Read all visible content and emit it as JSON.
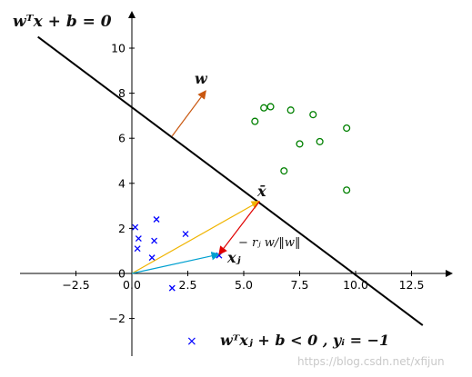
{
  "chart_data": {
    "type": "scatter",
    "xlim": [
      -5,
      14
    ],
    "ylim": [
      -3.6,
      11.4
    ],
    "x_ticks": [
      -2.5,
      0.0,
      2.5,
      5.0,
      7.5,
      10.0,
      12.5
    ],
    "x_tick_labels": [
      "−2.5",
      "0.0",
      "2.5",
      "5.0",
      "7.5",
      "10.0",
      "12.5"
    ],
    "y_ticks": [
      -2,
      0,
      2,
      4,
      6,
      8,
      10
    ],
    "y_tick_labels": [
      "−2",
      "0",
      "2",
      "4",
      "6",
      "8",
      "10"
    ],
    "grid": false,
    "positive_points": [
      [
        5.5,
        6.75
      ],
      [
        5.9,
        7.35
      ],
      [
        6.2,
        7.4
      ],
      [
        7.1,
        7.25
      ],
      [
        8.1,
        7.05
      ],
      [
        9.6,
        6.45
      ],
      [
        7.5,
        5.75
      ],
      [
        8.4,
        5.85
      ],
      [
        6.8,
        4.55
      ],
      [
        9.6,
        3.7
      ]
    ],
    "negative_points": [
      [
        0.15,
        2.05
      ],
      [
        0.3,
        1.55
      ],
      [
        1.1,
        2.4
      ],
      [
        0.25,
        1.1
      ],
      [
        1.0,
        1.45
      ],
      [
        2.4,
        1.75
      ],
      [
        0.9,
        0.7
      ],
      [
        3.9,
        0.8
      ],
      [
        1.8,
        -0.65
      ]
    ],
    "positive_color": "#008000",
    "negative_color": "#0000ff",
    "hyperplane": {
      "x": [
        -4.2,
        13.0
      ],
      "y": [
        10.5,
        -2.3
      ],
      "color": "#000000"
    },
    "w_vector": {
      "from": [
        1.8,
        6.1
      ],
      "to": [
        3.3,
        8.1
      ],
      "color": "#c9570f"
    },
    "xbar_vector": {
      "from": [
        0,
        0
      ],
      "to": [
        5.7,
        3.2
      ],
      "color": "#f0b400"
    },
    "xj_vector": {
      "from": [
        0,
        0
      ],
      "to": [
        3.9,
        0.85
      ],
      "color": "#00a0d0"
    },
    "r_vector": {
      "from": [
        5.7,
        3.2
      ],
      "to": [
        3.9,
        0.85
      ],
      "color": "#e00000"
    }
  },
  "labels": {
    "hyperplane_eq": "wᵀx + b = 0",
    "w": "w",
    "xbar": "x̄",
    "xj": "xⱼ",
    "r_label": "− rⱼ w/‖w‖",
    "neg_legend_marker": "×",
    "neg_legend": "wᵀxⱼ + b < 0 , yᵢ = −1"
  },
  "watermark": "https://blog.csdn.net/xfijun"
}
